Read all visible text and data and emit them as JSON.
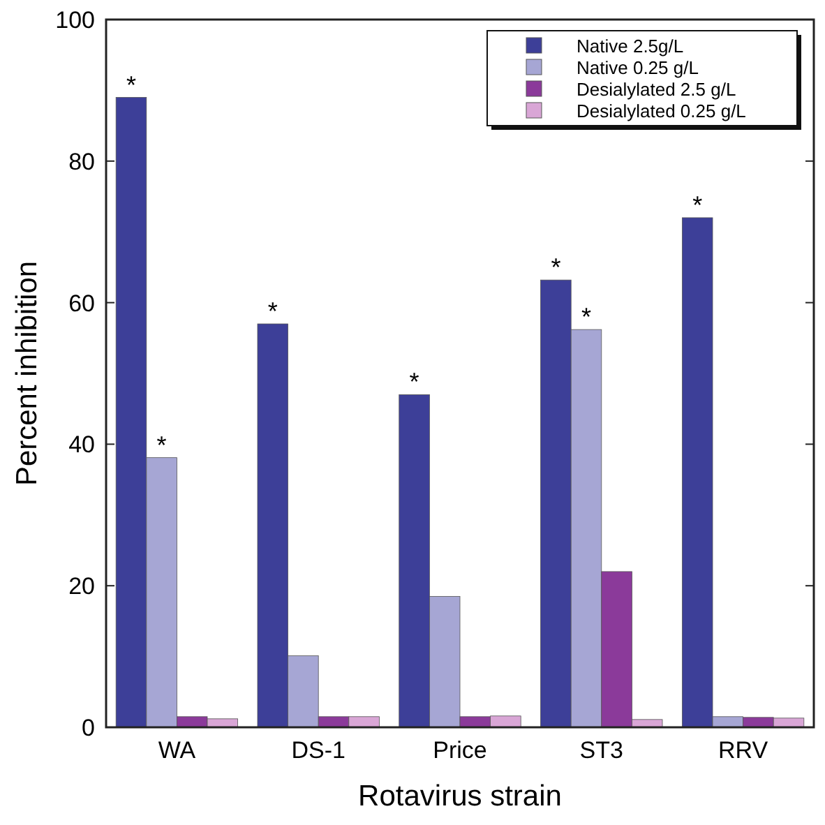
{
  "chart_data": {
    "type": "bar",
    "xlabel": "Rotavirus strain",
    "ylabel": "Percent inhibition",
    "categories": [
      "WA",
      "DS-1",
      "Price",
      "ST3",
      "RRV"
    ],
    "series": [
      {
        "name": "Native 2.5g/L",
        "color": "#3d3f98",
        "values": [
          89,
          57,
          47,
          63.2,
          72
        ],
        "value_labels": [
          "*",
          "*",
          "*",
          "*",
          "*"
        ]
      },
      {
        "name": "Native 0.25 g/L",
        "color": "#a6a6d4",
        "values": [
          38.1,
          10.1,
          18.5,
          56.2,
          1.5
        ],
        "value_labels": [
          "*",
          null,
          null,
          "*",
          null
        ]
      },
      {
        "name": "Desialylated 2.5 g/L",
        "color": "#8b3a9a",
        "values": [
          1.5,
          1.5,
          1.5,
          22,
          1.4
        ]
      },
      {
        "name": "Desialylated 0.25 g/L",
        "color": "#d9a6d6",
        "values": [
          1.2,
          1.5,
          1.6,
          1.1,
          1.3
        ]
      }
    ],
    "ylim": [
      0,
      100
    ],
    "yticks": [
      0,
      20,
      40,
      60,
      80,
      100
    ],
    "legend": "top right"
  }
}
